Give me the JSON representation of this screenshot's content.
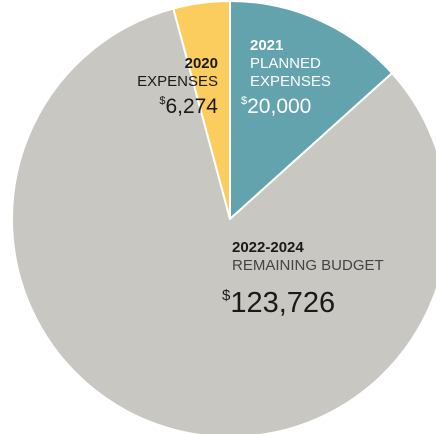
{
  "chart_data": {
    "type": "pie",
    "slices": [
      {
        "year": "2020",
        "category": "EXPENSES",
        "currency": "$",
        "value_label": "6,274",
        "value": 6274,
        "color": "#fbcd5f",
        "text_color": "#1a1a1a"
      },
      {
        "year": "2021",
        "category_line1": "PLANNED",
        "category_line2": "EXPENSES",
        "currency": "$",
        "value_label": "20,000",
        "value": 20000,
        "color": "#62a3ae",
        "text_color": "#ffffff"
      },
      {
        "year": "2022-2024",
        "category": "REMAINING BUDGET",
        "currency": "$",
        "value_label": "123,726",
        "value": 123726,
        "color": "#c8c7c2",
        "text_color": "#1a1a1a",
        "text_color_category": "#444444"
      }
    ]
  }
}
